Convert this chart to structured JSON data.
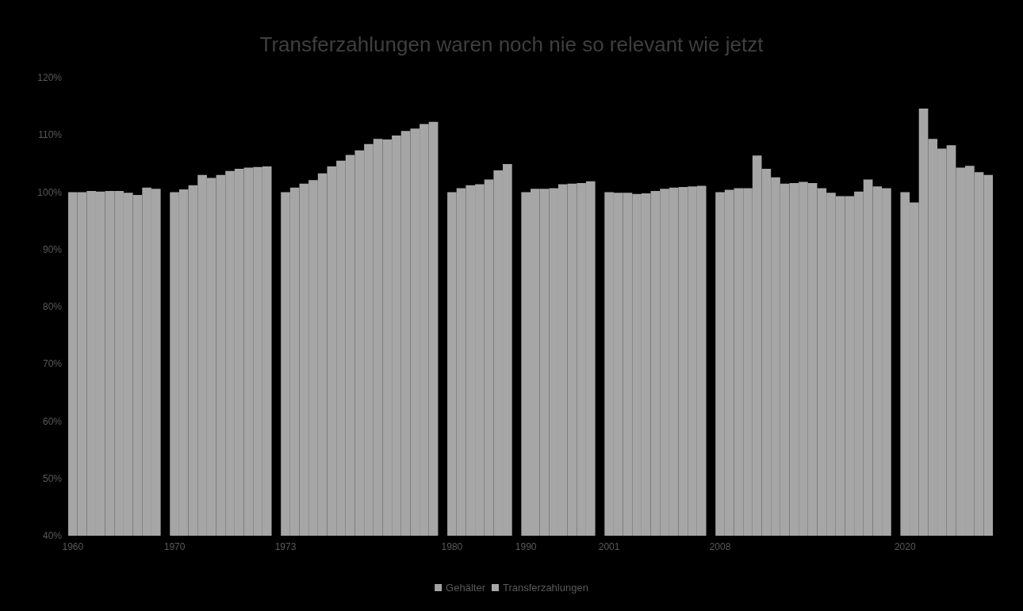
{
  "chart_data": {
    "type": "bar",
    "title": "Transferzahlungen waren noch nie so relevant wie jetzt",
    "categories": [
      "1960",
      null,
      null,
      null,
      null,
      null,
      null,
      null,
      null,
      null,
      null,
      "1970",
      null,
      null,
      null,
      null,
      null,
      null,
      null,
      null,
      null,
      null,
      null,
      "1973",
      null,
      null,
      null,
      null,
      null,
      null,
      null,
      null,
      null,
      null,
      null,
      null,
      null,
      null,
      null,
      null,
      null,
      "1980",
      null,
      null,
      null,
      null,
      null,
      null,
      null,
      "1990",
      null,
      null,
      null,
      null,
      null,
      null,
      null,
      null,
      "2001",
      null,
      null,
      null,
      null,
      null,
      null,
      null,
      null,
      null,
      null,
      null,
      "2008",
      null,
      null,
      null,
      null,
      null,
      null,
      null,
      null,
      null,
      null,
      null,
      null,
      null,
      null,
      null,
      null,
      null,
      null,
      null,
      "2020",
      null,
      null,
      null,
      null,
      null,
      null,
      null,
      null,
      null
    ],
    "series": [
      {
        "name": "Gehälter",
        "color": "#a3a3a3",
        "values": [
          null,
          null,
          null,
          null,
          null,
          null,
          null,
          null,
          null,
          null,
          null,
          null,
          null,
          null,
          null,
          null,
          null,
          null,
          null,
          null,
          null,
          null,
          null,
          null,
          null,
          null,
          null,
          null,
          null,
          null,
          null,
          null,
          null,
          null,
          null,
          null,
          null,
          null,
          null,
          null,
          null,
          null,
          null,
          null,
          null,
          null,
          null,
          null,
          null,
          null,
          null,
          null,
          null,
          null,
          null,
          null,
          null,
          null,
          null,
          null,
          null,
          null,
          null,
          null,
          null,
          null,
          null,
          null,
          null,
          null,
          null,
          null,
          null,
          null,
          null,
          null,
          null,
          null,
          null,
          null,
          null,
          null,
          null,
          null,
          null,
          null,
          null,
          null,
          null,
          null,
          null,
          null,
          null,
          null,
          null,
          null,
          null,
          null,
          null,
          null
        ]
      },
      {
        "name": "Transferzahlungen",
        "color": "#a6a6a6",
        "values": [
          100,
          100,
          100.2,
          100.1,
          100.2,
          100.2,
          99.9,
          99.5,
          100.8,
          100.6,
          null,
          100,
          100.5,
          101.2,
          103.0,
          102.5,
          103.0,
          103.7,
          104.1,
          104.3,
          104.4,
          104.5,
          null,
          100,
          100.8,
          101.5,
          102.1,
          103.3,
          104.5,
          105.5,
          106.5,
          107.3,
          108.4,
          109.3,
          109.2,
          109.9,
          110.7,
          111.1,
          111.9,
          112.3,
          null,
          100,
          100.7,
          101.2,
          101.4,
          102.2,
          103.8,
          104.9,
          null,
          100,
          100.6,
          100.6,
          100.7,
          101.4,
          101.5,
          101.6,
          101.9,
          null,
          100,
          99.9,
          99.9,
          99.7,
          99.8,
          100.2,
          100.6,
          100.8,
          100.9,
          101.0,
          101.1,
          null,
          100,
          100.4,
          100.7,
          100.7,
          106.4,
          104.1,
          102.6,
          101.5,
          101.6,
          101.8,
          101.6,
          100.7,
          99.9,
          99.3,
          99.3,
          100.1,
          102.2,
          101.0,
          100.7,
          null,
          100,
          98.2,
          114.6,
          109.3,
          107.6,
          108.2,
          104.3,
          104.6,
          103.5,
          103.0
        ]
      }
    ],
    "ylim": [
      40,
      120
    ],
    "yticks": [
      {
        "value": 40,
        "label": "40%"
      },
      {
        "value": 50,
        "label": "50%"
      },
      {
        "value": 60,
        "label": "60%"
      },
      {
        "value": 70,
        "label": "70%"
      },
      {
        "value": 80,
        "label": "80%"
      },
      {
        "value": 90,
        "label": "90%"
      },
      {
        "value": 100,
        "label": "100%"
      },
      {
        "value": 110,
        "label": "110%"
      },
      {
        "value": 120,
        "label": "120%"
      }
    ],
    "grid": false,
    "legend": "bottom"
  }
}
